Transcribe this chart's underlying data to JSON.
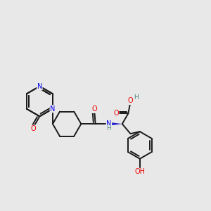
{
  "background_color": "#e8e8e8",
  "bond_color": "#1a1a1a",
  "bond_width": 1.4,
  "atom_colors": {
    "N": "#0000ee",
    "O": "#ee0000",
    "H": "#4a8a8a",
    "C": "#1a1a1a"
  },
  "font_size_atom": 7.0,
  "font_size_H": 6.5,
  "wedge_color": "#1a1acc"
}
